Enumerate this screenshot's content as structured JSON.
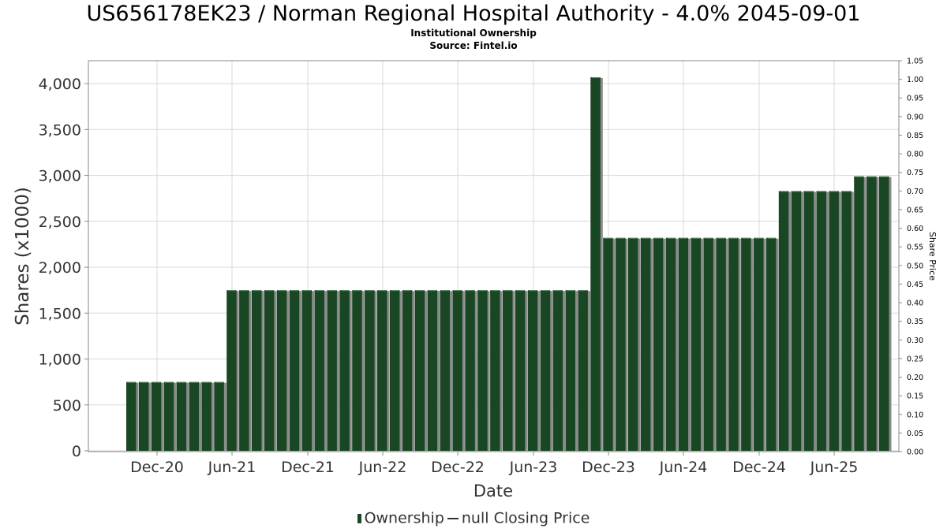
{
  "chart_data": {
    "type": "bar",
    "title": "US656178EK23 / Norman Regional Hospital Authority - 4.0% 2045-09-01",
    "subtitle": "Institutional Ownership",
    "source": "Source: Fintel.io",
    "xlabel": "Date",
    "ylabel": "Shares (x1000)",
    "y2label": "Share Price",
    "ylim": [
      0,
      4250
    ],
    "y2lim": [
      0.0,
      1.05
    ],
    "yticks": [
      "0",
      "500",
      "1,000",
      "1,500",
      "2,000",
      "2,500",
      "3,000",
      "3,500",
      "4,000"
    ],
    "y2ticks": [
      "0.00",
      "0.05",
      "0.10",
      "0.15",
      "0.20",
      "0.25",
      "0.30",
      "0.35",
      "0.40",
      "0.45",
      "0.50",
      "0.55",
      "0.60",
      "0.65",
      "0.70",
      "0.75",
      "0.80",
      "0.85",
      "0.90",
      "0.95",
      "1.00",
      "1.05"
    ],
    "xticks": [
      "Dec-20",
      "Jun-21",
      "Dec-21",
      "Jun-22",
      "Dec-22",
      "Jun-23",
      "Dec-23",
      "Jun-24",
      "Dec-24",
      "Jun-25"
    ],
    "grid": true,
    "legend_position": "bottom",
    "series": [
      {
        "name": "Ownership",
        "color": "#1a4723",
        "values": [
          750,
          750,
          750,
          750,
          750,
          750,
          750,
          750,
          1750,
          1750,
          1750,
          1750,
          1750,
          1750,
          1750,
          1750,
          1750,
          1750,
          1750,
          1750,
          1750,
          1750,
          1750,
          1750,
          1750,
          1750,
          1750,
          1750,
          1750,
          1750,
          1750,
          1750,
          1750,
          1750,
          1750,
          1750,
          1750,
          4070,
          2320,
          2320,
          2320,
          2320,
          2320,
          2320,
          2320,
          2320,
          2320,
          2320,
          2320,
          2320,
          2320,
          2320,
          2830,
          2830,
          2830,
          2830,
          2830,
          2830,
          2990,
          2990,
          2990
        ]
      },
      {
        "name": "null Closing Price",
        "color": "#333333",
        "values": []
      }
    ]
  }
}
